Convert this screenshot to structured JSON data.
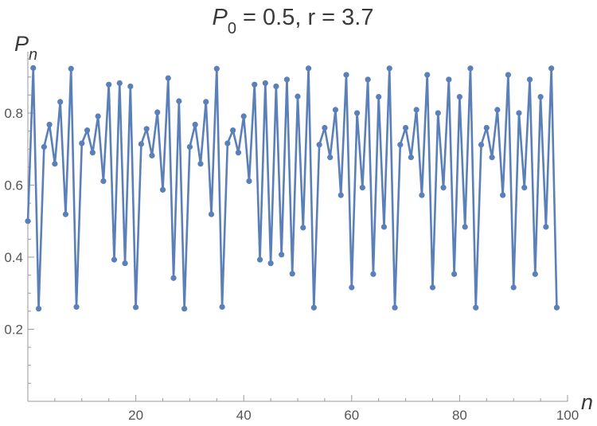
{
  "chart_data": {
    "type": "line",
    "title": {
      "parts": [
        {
          "text": "P",
          "italic": true
        },
        {
          "text": "0",
          "sub": true
        },
        {
          "text": " = 0.5, r = 3.7",
          "italic": false
        }
      ]
    },
    "ylabel": {
      "parts": [
        {
          "text": "P",
          "italic": true
        },
        {
          "text": "n",
          "sub": true,
          "italic": true
        }
      ]
    },
    "xlabel": "n",
    "xlim": [
      0,
      100
    ],
    "ylim": [
      0,
      0.97
    ],
    "xticks": [
      20,
      40,
      60,
      80,
      100
    ],
    "xtick_labels": [
      "20",
      "40",
      "60",
      "80",
      "100"
    ],
    "yticks": [
      0.2,
      0.4,
      0.6,
      0.8
    ],
    "ytick_labels": [
      "0.2",
      "0.4",
      "0.6",
      "0.8"
    ],
    "x_minor_step": 5,
    "y_minor_step": 0.05,
    "grid": false,
    "colors": {
      "series": "#5b7fb8",
      "axis": "#9a9a9a",
      "text": "#3a3a3a"
    },
    "series": [
      {
        "values": [
          0.5,
          0.925,
          0.257,
          0.706,
          0.768,
          0.659,
          0.831,
          0.519,
          0.923,
          0.262,
          0.716,
          0.752,
          0.69,
          0.791,
          0.611,
          0.879,
          0.393,
          0.883,
          0.383,
          0.874,
          0.261,
          0.714,
          0.756,
          0.682,
          0.802,
          0.587,
          0.897,
          0.342,
          0.833,
          0.257,
          0.706,
          0.768,
          0.659,
          0.831,
          0.519,
          0.923,
          0.262,
          0.716,
          0.752,
          0.69,
          0.791,
          0.611,
          0.879,
          0.393,
          0.883,
          0.383,
          0.874,
          0.407,
          0.893,
          0.354,
          0.846,
          0.482,
          0.924,
          0.26,
          0.712,
          0.759,
          0.677,
          0.809,
          0.572,
          0.906,
          0.316,
          0.8,
          0.593,
          0.893,
          0.353,
          0.845,
          0.484,
          0.924,
          0.26,
          0.712,
          0.759,
          0.677,
          0.809,
          0.572,
          0.906,
          0.316,
          0.8,
          0.593,
          0.893,
          0.353,
          0.845,
          0.484,
          0.924,
          0.26,
          0.712,
          0.759,
          0.677,
          0.809,
          0.572,
          0.906,
          0.316,
          0.8,
          0.593,
          0.893,
          0.353,
          0.845,
          0.484,
          0.924,
          0.26
        ]
      }
    ]
  }
}
